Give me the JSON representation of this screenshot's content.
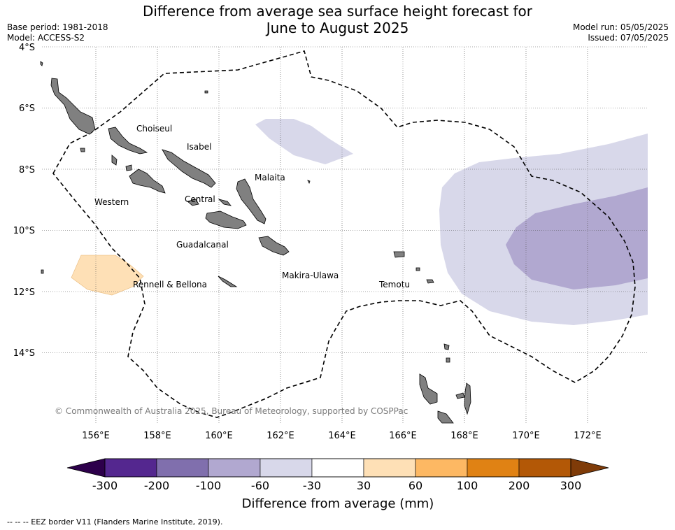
{
  "title_line1": "Difference from average sea surface height forecast for",
  "title_line2": "June to August 2025",
  "base_period": "Base period: 1981-2018",
  "model": "Model: ACCESS-S2",
  "model_run": "Model run: 05/05/2025",
  "issued": "Issued: 07/05/2025",
  "lat_labels": [
    "4°S",
    "6°S",
    "8°S",
    "10°S",
    "12°S",
    "14°S"
  ],
  "lon_labels": [
    "156°E",
    "158°E",
    "160°E",
    "162°E",
    "164°E",
    "166°E",
    "168°E",
    "170°E",
    "172°E"
  ],
  "provinces": [
    "Choiseul",
    "Isabel",
    "Malaita",
    "Western",
    "Central",
    "Guadalcanal",
    "Makira-Ulawa",
    "Rennell & Bellona",
    "Temotu"
  ],
  "copyright": "© Commonwealth of Australia 2025, Bureau of Meteorology, supported by COSPPac",
  "colorbar": {
    "ticks": [
      "-300",
      "-200",
      "-100",
      "-60",
      "-30",
      "30",
      "60",
      "100",
      "200",
      "300"
    ],
    "colors": [
      "#54278f",
      "#806fad",
      "#b1a8d0",
      "#d8d8ea",
      "#ffffff",
      "#fee0b6",
      "#fdb863",
      "#e08214",
      "#b35806"
    ],
    "under_color": "#2d004b",
    "over_color": "#7f3b08",
    "label": "Difference from average (mm)"
  },
  "legend_note": "--  --  -- EEZ border V11 (Flanders Marine Institute, 2019).",
  "chart_data": {
    "type": "map",
    "title": "Difference from average sea surface height forecast for June to August 2025",
    "units": "mm",
    "lon_range": [
      154.2,
      174
    ],
    "lat_range": [
      -16,
      -4
    ],
    "anomaly_regions": [
      {
        "name": "east-outer",
        "class": "-60 to -30",
        "lon_range": [
          167.5,
          174
        ],
        "lat_range": [
          -13.3,
          -7.1
        ]
      },
      {
        "name": "east-inner",
        "class": "-100 to -60",
        "lon_range": [
          169.5,
          174
        ],
        "lat_range": [
          -11.9,
          -8.6
        ]
      },
      {
        "name": "north",
        "class": "-60 to -30",
        "lon_range": [
          161.2,
          164.4
        ],
        "lat_range": [
          -7.8,
          -6.4
        ]
      },
      {
        "name": "south-west",
        "class": "30 to 60",
        "lon_range": [
          155.2,
          157.6
        ],
        "lat_range": [
          -12.1,
          -10.8
        ]
      }
    ]
  }
}
